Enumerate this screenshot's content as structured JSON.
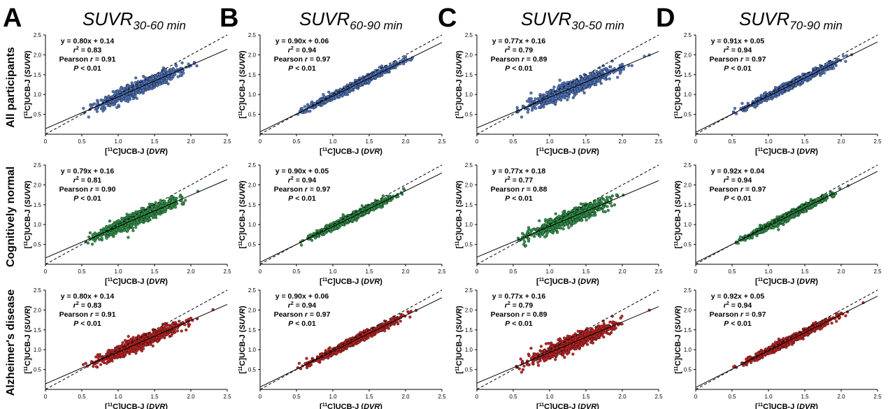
{
  "figure": {
    "columns": [
      {
        "letter": "A",
        "title_main": "SUVR",
        "title_sub": "30-60 min"
      },
      {
        "letter": "B",
        "title_main": "SUVR",
        "title_sub": "60-90 min"
      },
      {
        "letter": "C",
        "title_main": "SUVR",
        "title_sub": "30-50 min"
      },
      {
        "letter": "D",
        "title_main": "SUVR",
        "title_sub": "70-90 min"
      }
    ],
    "rows": [
      {
        "label": "All participants",
        "color": "#4f79c8"
      },
      {
        "label": "Cognitively normal",
        "color": "#2e9a4a"
      },
      {
        "label": "Alzheimer's disease",
        "color": "#cc1f1f"
      }
    ],
    "xlabel_prefix": "[",
    "xlabel_sup": "11",
    "xlabel_mid": "C]UCB-J (",
    "xlabel_italic": "DVR",
    "xlabel_suffix": ")",
    "ylabel_prefix": "[",
    "ylabel_sup": "11",
    "ylabel_mid": "C]UCB-J (",
    "ylabel_italic": "SUVR",
    "ylabel_suffix": ")",
    "r2_label": "r",
    "r2_sup": "2",
    "pearson_label": "Pearson ",
    "pearson_r": "r",
    "p_label": "P",
    "p_value": " < 0.01"
  },
  "chart_data": [
    {
      "type": "scatter",
      "column": "A",
      "row": "All participants",
      "x_range": [
        0,
        2.5
      ],
      "y_range": [
        0,
        2.5
      ],
      "x_ticks": [
        "0",
        "0.5",
        "1.0",
        "1.5",
        "2.0",
        "2.5"
      ],
      "y_ticks": [
        "0.5",
        "1.0",
        "1.5",
        "2.0",
        "2.5"
      ],
      "slope": 0.8,
      "intercept": 0.14,
      "equation": "y = 0.80x + 0.14",
      "r2": "0.83",
      "pearson_r": "0.91",
      "x_extent": [
        0.52,
        2.42
      ],
      "scatter_sd": 0.075,
      "identity_line": true
    },
    {
      "type": "scatter",
      "column": "B",
      "row": "All participants",
      "x_range": [
        0,
        2.5
      ],
      "y_range": [
        0,
        2.5
      ],
      "x_ticks": [
        "0",
        "0.5",
        "1.0",
        "1.5",
        "2.0",
        "2.5"
      ],
      "y_ticks": [
        "0.5",
        "1.0",
        "1.5",
        "2.0",
        "2.5"
      ],
      "slope": 0.9,
      "intercept": 0.06,
      "equation": "y = 0.90x + 0.06",
      "r2": "0.94",
      "pearson_r": "0.97",
      "x_extent": [
        0.5,
        2.4
      ],
      "scatter_sd": 0.045,
      "identity_line": true
    },
    {
      "type": "scatter",
      "column": "C",
      "row": "All participants",
      "x_range": [
        0,
        2.5
      ],
      "y_range": [
        0,
        2.5
      ],
      "x_ticks": [
        "0",
        "0.5",
        "1.0",
        "1.5",
        "2.0",
        "2.5"
      ],
      "y_ticks": [
        "0.5",
        "1.0",
        "1.5",
        "2.0",
        "2.5"
      ],
      "slope": 0.77,
      "intercept": 0.16,
      "equation": "y = 0.77x + 0.16",
      "r2": "0.79",
      "pearson_r": "0.89",
      "x_extent": [
        0.52,
        2.42
      ],
      "scatter_sd": 0.085,
      "identity_line": true
    },
    {
      "type": "scatter",
      "column": "D",
      "row": "All participants",
      "x_range": [
        0,
        2.5
      ],
      "y_range": [
        0,
        2.5
      ],
      "x_ticks": [
        "0",
        "0.5",
        "1.0",
        "1.5",
        "2.0",
        "2.5"
      ],
      "y_ticks": [
        "0.5",
        "1.0",
        "1.5",
        "2.0",
        "2.5"
      ],
      "slope": 0.91,
      "intercept": 0.05,
      "equation": "y = 0.91x + 0.05",
      "r2": "0.94",
      "pearson_r": "0.97",
      "x_extent": [
        0.5,
        2.4
      ],
      "scatter_sd": 0.045,
      "identity_line": true
    },
    {
      "type": "scatter",
      "column": "A",
      "row": "Cognitively normal",
      "x_range": [
        0,
        2.5
      ],
      "y_range": [
        0,
        2.5
      ],
      "x_ticks": [
        "0",
        "0.5",
        "1.0",
        "1.5",
        "2.0",
        "2.5"
      ],
      "y_ticks": [
        "0.5",
        "1.0",
        "1.5",
        "2.0",
        "2.5"
      ],
      "slope": 0.79,
      "intercept": 0.16,
      "equation": "y = 0.79x + 0.16",
      "r2": "0.81",
      "pearson_r": "0.90",
      "x_extent": [
        0.55,
        2.1
      ],
      "scatter_sd": 0.08,
      "identity_line": true
    },
    {
      "type": "scatter",
      "column": "B",
      "row": "Cognitively normal",
      "x_range": [
        0,
        2.5
      ],
      "y_range": [
        0,
        2.5
      ],
      "x_ticks": [
        "0",
        "0.5",
        "1.0",
        "1.5",
        "2.0",
        "2.5"
      ],
      "y_ticks": [
        "0.5",
        "1.0",
        "1.5",
        "2.0",
        "2.5"
      ],
      "slope": 0.9,
      "intercept": 0.05,
      "equation": "y = 0.90x + 0.05",
      "r2": "0.94",
      "pearson_r": "0.97",
      "x_extent": [
        0.55,
        2.1
      ],
      "scatter_sd": 0.045,
      "identity_line": true
    },
    {
      "type": "scatter",
      "column": "C",
      "row": "Cognitively normal",
      "x_range": [
        0,
        2.5
      ],
      "y_range": [
        0,
        2.5
      ],
      "x_ticks": [
        "0",
        "0.5",
        "1.0",
        "1.5",
        "2.0",
        "2.5"
      ],
      "y_ticks": [
        "0.5",
        "1.0",
        "1.5",
        "2.0",
        "2.5"
      ],
      "slope": 0.77,
      "intercept": 0.18,
      "equation": "y = 0.77x + 0.18",
      "r2": "0.77",
      "pearson_r": "0.88",
      "x_extent": [
        0.55,
        2.1
      ],
      "scatter_sd": 0.085,
      "identity_line": true
    },
    {
      "type": "scatter",
      "column": "D",
      "row": "Cognitively normal",
      "x_range": [
        0,
        2.5
      ],
      "y_range": [
        0,
        2.5
      ],
      "x_ticks": [
        "0",
        "0.5",
        "1.0",
        "1.5",
        "2.0",
        "2.5"
      ],
      "y_ticks": [
        "0.5",
        "1.0",
        "1.5",
        "2.0",
        "2.5"
      ],
      "slope": 0.92,
      "intercept": 0.04,
      "equation": "y = 0.92x + 0.04",
      "r2": "0.94",
      "pearson_r": "0.97",
      "x_extent": [
        0.55,
        2.1
      ],
      "scatter_sd": 0.045,
      "identity_line": true
    },
    {
      "type": "scatter",
      "column": "A",
      "row": "Alzheimer's disease",
      "x_range": [
        0,
        2.5
      ],
      "y_range": [
        0,
        2.5
      ],
      "x_ticks": [
        "0",
        "0.5",
        "1.0",
        "1.5",
        "2.0",
        "2.5"
      ],
      "y_ticks": [
        "0.5",
        "1.0",
        "1.5",
        "2.0",
        "2.5"
      ],
      "slope": 0.8,
      "intercept": 0.14,
      "equation": "y = 0.80x + 0.14",
      "r2": "0.83",
      "pearson_r": "0.91",
      "x_extent": [
        0.52,
        2.42
      ],
      "scatter_sd": 0.075,
      "identity_line": true
    },
    {
      "type": "scatter",
      "column": "B",
      "row": "Alzheimer's disease",
      "x_range": [
        0,
        2.5
      ],
      "y_range": [
        0,
        2.5
      ],
      "x_ticks": [
        "0",
        "0.5",
        "1.0",
        "1.5",
        "2.0",
        "2.5"
      ],
      "y_ticks": [
        "0.5",
        "1.0",
        "1.5",
        "2.0",
        "2.5"
      ],
      "slope": 0.9,
      "intercept": 0.06,
      "equation": "y = 0.90x + 0.06",
      "r2": "0.94",
      "pearson_r": "0.97",
      "x_extent": [
        0.5,
        2.4
      ],
      "scatter_sd": 0.045,
      "identity_line": true
    },
    {
      "type": "scatter",
      "column": "C",
      "row": "Alzheimer's disease",
      "x_range": [
        0,
        2.5
      ],
      "y_range": [
        0,
        2.5
      ],
      "x_ticks": [
        "0",
        "0.5",
        "1.0",
        "1.5",
        "2.0",
        "2.5"
      ],
      "y_ticks": [
        "0.5",
        "1.0",
        "1.5",
        "2.0",
        "2.5"
      ],
      "slope": 0.77,
      "intercept": 0.16,
      "equation": "y = 0.77x + 0.16",
      "r2": "0.79",
      "pearson_r": "0.89",
      "x_extent": [
        0.52,
        2.42
      ],
      "scatter_sd": 0.085,
      "identity_line": true
    },
    {
      "type": "scatter",
      "column": "D",
      "row": "Alzheimer's disease",
      "x_range": [
        0,
        2.5
      ],
      "y_range": [
        0,
        2.5
      ],
      "x_ticks": [
        "0",
        "0.5",
        "1.0",
        "1.5",
        "2.0",
        "2.5"
      ],
      "y_ticks": [
        "0.5",
        "1.0",
        "1.5",
        "2.0",
        "2.5"
      ],
      "slope": 0.92,
      "intercept": 0.05,
      "equation": "y = 0.92x + 0.05",
      "r2": "0.94",
      "pearson_r": "0.97",
      "x_extent": [
        0.5,
        2.4
      ],
      "scatter_sd": 0.045,
      "identity_line": true
    }
  ]
}
